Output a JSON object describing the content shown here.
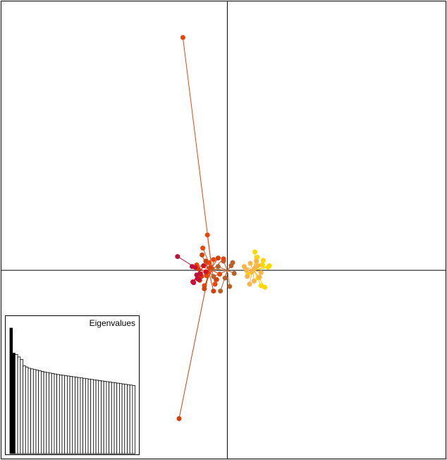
{
  "chart_data": [
    {
      "type": "scatter",
      "xlim": [
        -2.95,
        2.85
      ],
      "ylim": [
        -2.45,
        3.5
      ],
      "axes_lines_at": [
        0,
        0
      ],
      "grid": false,
      "colors": {
        "gold": "#FFD700",
        "light_orange": "#FFB347",
        "brown": "#B8622A",
        "orange_red": "#E8460A",
        "dark_orange": "#D4400A",
        "red": "#D41020",
        "crimson": "#C0103C"
      },
      "groups": [
        {
          "color": "#FFD700",
          "center": [
            0.35,
            0.0
          ],
          "points": [
            [
              0.36,
              0.24
            ],
            [
              0.47,
              0.13
            ],
            [
              0.55,
              0.06
            ],
            [
              0.44,
              -0.2
            ],
            [
              0.49,
              -0.22
            ],
            [
              0.53,
              0.04
            ],
            [
              0.39,
              0.17
            ],
            [
              0.27,
              -0.05
            ],
            [
              0.4,
              -0.1
            ],
            [
              0.46,
              0.07
            ]
          ]
        },
        {
          "color": "#FFB347",
          "center": [
            0.33,
            0.01
          ],
          "points": [
            [
              0.22,
              0.05
            ],
            [
              0.26,
              -0.08
            ],
            [
              0.3,
              0.09
            ],
            [
              0.35,
              -0.14
            ],
            [
              0.4,
              0.06
            ],
            [
              0.44,
              -0.03
            ],
            [
              0.29,
              -0.18
            ],
            [
              0.38,
              0.12
            ],
            [
              0.32,
              -0.02
            ],
            [
              0.25,
              0.0
            ],
            [
              0.42,
              -0.09
            ],
            [
              0.36,
              0.03
            ]
          ]
        },
        {
          "color": "#B8622A",
          "center": [
            0.0,
            0.0
          ],
          "points": [
            [
              -0.05,
              0.12
            ],
            [
              0.05,
              0.06
            ],
            [
              0.09,
              -0.04
            ],
            [
              -0.03,
              -0.1
            ],
            [
              0.03,
              -0.21
            ],
            [
              -0.09,
              -0.27
            ],
            [
              -0.18,
              -0.08
            ],
            [
              -0.12,
              0.05
            ],
            [
              0.07,
              0.1
            ],
            [
              -0.2,
              0.02
            ]
          ]
        },
        {
          "color": "#E8460A",
          "center": [
            -0.2,
            0.0
          ],
          "points": [
            [
              -0.58,
              3.03
            ],
            [
              -0.26,
              0.46
            ],
            [
              -0.32,
              0.29
            ],
            [
              -0.18,
              0.14
            ],
            [
              -0.05,
              0.15
            ],
            [
              -0.4,
              0.07
            ],
            [
              -0.27,
              -0.07
            ],
            [
              -0.36,
              -0.13
            ],
            [
              -0.1,
              -0.05
            ],
            [
              -0.24,
              0.1
            ],
            [
              -0.16,
              -0.18
            ],
            [
              -0.3,
              -0.2
            ]
          ]
        },
        {
          "color": "#D4400A",
          "center": [
            -0.24,
            -0.02
          ],
          "points": [
            [
              -0.63,
              -1.93
            ],
            [
              -0.33,
              0.2
            ],
            [
              -0.3,
              -0.24
            ],
            [
              -0.18,
              -0.27
            ],
            [
              -0.12,
              0.16
            ],
            [
              -0.38,
              0.02
            ],
            [
              -0.22,
              0.04
            ],
            [
              -0.14,
              -0.12
            ],
            [
              -0.34,
              -0.08
            ],
            [
              -0.28,
              0.12
            ]
          ]
        },
        {
          "color": "#D41020",
          "center": [
            -0.36,
            -0.02
          ],
          "points": [
            [
              -0.45,
              -0.15
            ],
            [
              -0.42,
              0.04
            ],
            [
              -0.35,
              -0.05
            ],
            [
              -0.31,
              0.06
            ],
            [
              -0.39,
              -0.11
            ],
            [
              -0.28,
              -0.02
            ]
          ]
        },
        {
          "color": "#C0103C",
          "center": [
            -0.36,
            0.0
          ],
          "points": [
            [
              -0.65,
              0.18
            ],
            [
              -0.44,
              -0.16
            ],
            [
              -0.46,
              0.05
            ],
            [
              -0.4,
              -0.06
            ],
            [
              -0.37,
              -0.12
            ]
          ]
        }
      ]
    },
    {
      "type": "bar",
      "title": "Eigenvalues",
      "values": [
        1.0,
        0.8,
        0.79,
        0.77,
        0.75,
        0.7,
        0.69,
        0.68,
        0.675,
        0.67,
        0.665,
        0.66,
        0.655,
        0.65,
        0.646,
        0.642,
        0.638,
        0.634,
        0.63,
        0.627,
        0.624,
        0.621,
        0.618,
        0.615,
        0.612,
        0.609,
        0.606,
        0.603,
        0.6,
        0.597,
        0.594,
        0.591,
        0.588,
        0.585,
        0.582,
        0.579,
        0.576,
        0.573,
        0.57,
        0.567,
        0.564,
        0.561,
        0.558,
        0.555,
        0.552,
        0.549,
        0.546,
        0.543
      ],
      "highlighted_count": 2
    }
  ]
}
